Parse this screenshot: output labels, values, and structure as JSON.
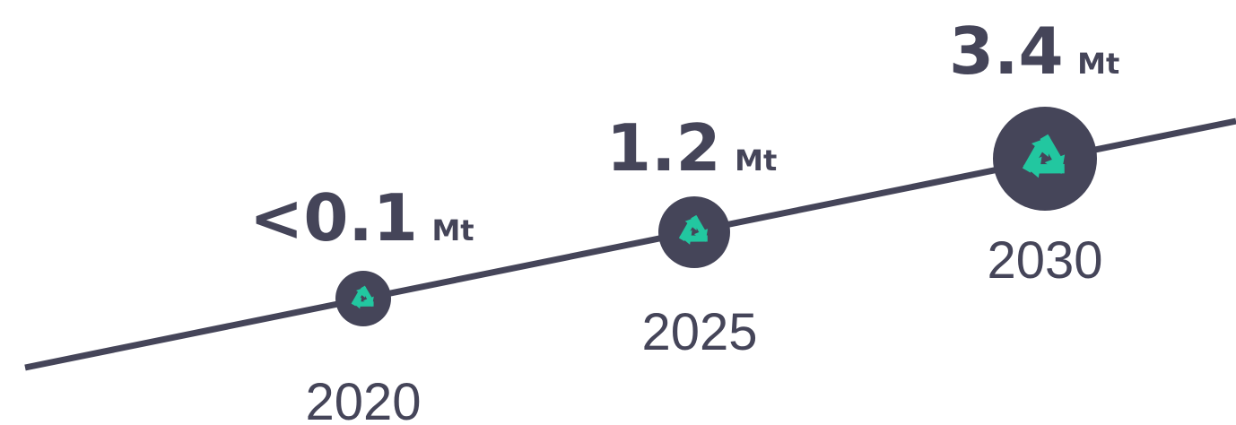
{
  "milestones": [
    {
      "value": "<0.1",
      "unit": "Mt",
      "year": "2020"
    },
    {
      "value": "1.2",
      "unit": "Mt",
      "year": "2025"
    },
    {
      "value": "3.4",
      "unit": "Mt",
      "year": "2030"
    }
  ]
}
